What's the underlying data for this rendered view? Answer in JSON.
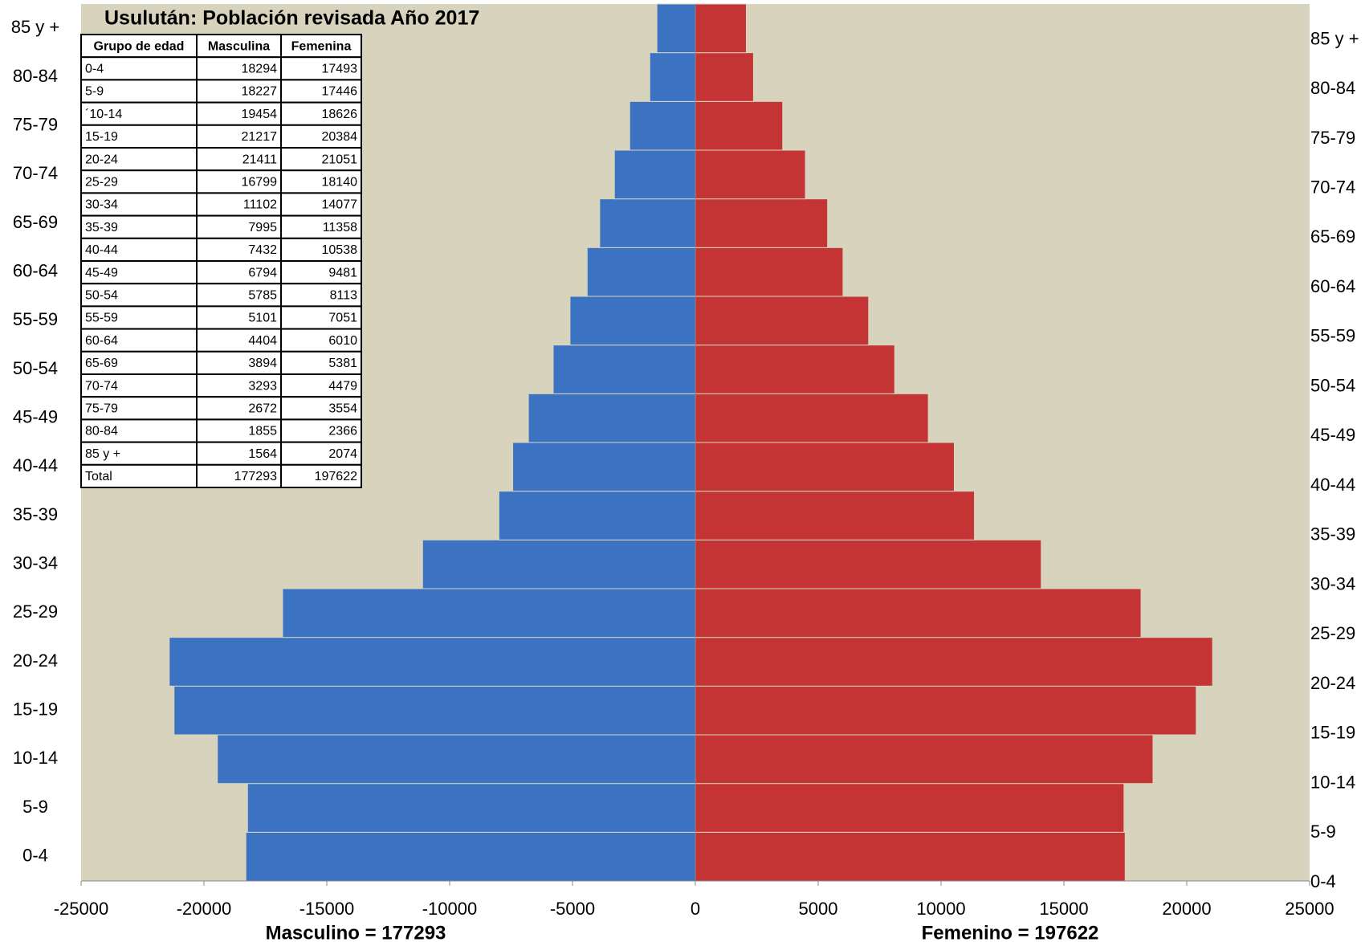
{
  "chart_data": {
    "type": "pyramid",
    "title": "Usulután: Población revisada Año 2017",
    "categories": [
      "0-4",
      "5-9",
      "10-14",
      "15-19",
      "20-24",
      "25-29",
      "30-34",
      "35-39",
      "40-44",
      "45-49",
      "50-54",
      "55-59",
      "60-64",
      "65-69",
      "70-74",
      "75-79",
      "80-84",
      "85 y +"
    ],
    "series": [
      {
        "name": "Masculino",
        "color": "#3b73c2",
        "values": [
          -18294,
          -18227,
          -19454,
          -21217,
          -21411,
          -16799,
          -11102,
          -7995,
          -7432,
          -6794,
          -5785,
          -5101,
          -4404,
          -3894,
          -3293,
          -2672,
          -1855,
          -1564
        ]
      },
      {
        "name": "Femenino",
        "color": "#c43434",
        "values": [
          17493,
          17446,
          18626,
          20384,
          21051,
          18140,
          14077,
          11358,
          10538,
          9481,
          8113,
          7051,
          6010,
          5381,
          4479,
          3554,
          2366,
          2074
        ]
      }
    ],
    "xlim": [
      -25000,
      25000
    ],
    "xticks": [
      -25000,
      -20000,
      -15000,
      -10000,
      -5000,
      0,
      5000,
      10000,
      15000,
      20000,
      25000
    ],
    "xlabel_left": "Masculino = 177293",
    "xlabel_right": "Femenino = 197622",
    "table": {
      "header": [
        "Grupo de edad",
        "Masculina",
        "Femenina"
      ],
      "rows": [
        [
          "0-4",
          18294,
          17493
        ],
        [
          "5-9",
          18227,
          17446
        ],
        [
          "´10-14",
          19454,
          18626
        ],
        [
          "15-19",
          21217,
          20384
        ],
        [
          "20-24",
          21411,
          21051
        ],
        [
          "25-29",
          16799,
          18140
        ],
        [
          "30-34",
          11102,
          14077
        ],
        [
          "35-39",
          7995,
          11358
        ],
        [
          "40-44",
          7432,
          10538
        ],
        [
          "45-49",
          6794,
          9481
        ],
        [
          "50-54",
          5785,
          8113
        ],
        [
          "55-59",
          5101,
          7051
        ],
        [
          "60-64",
          4404,
          6010
        ],
        [
          "65-69",
          3894,
          5381
        ],
        [
          "70-74",
          3293,
          4479
        ],
        [
          "75-79",
          2672,
          3554
        ],
        [
          "80-84",
          1855,
          2366
        ],
        [
          "85 y +",
          1564,
          2074
        ],
        [
          "Total",
          177293,
          197622
        ]
      ]
    }
  }
}
